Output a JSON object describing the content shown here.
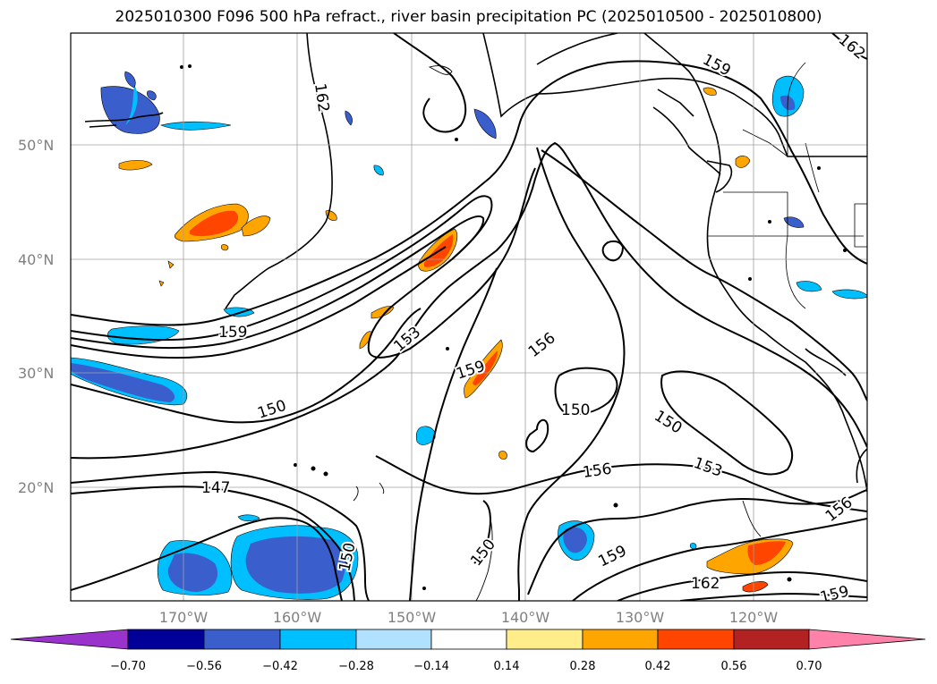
{
  "title": "2025010300 F096 500 hPa refract., river basin precipitation PC (2025010500 - 2025010800)",
  "map": {
    "lat_labels": [
      "50°N",
      "40°N",
      "30°N",
      "20°N"
    ],
    "lon_labels": [
      "170°W",
      "160°W",
      "150°W",
      "140°W",
      "130°W",
      "120°W"
    ],
    "contour_labels": [
      "162",
      "159",
      "159",
      "153",
      "156",
      "159",
      "150",
      "150",
      "150",
      "156",
      "153",
      "147",
      "150",
      "150",
      "159",
      "162",
      "156",
      "159",
      "162"
    ]
  },
  "colorbar": {
    "tick_labels": [
      "−0.70",
      "−0.56",
      "−0.42",
      "−0.28",
      "−0.14",
      "0.14",
      "0.28",
      "0.42",
      "0.56",
      "0.70"
    ],
    "colors": [
      "#9933cc",
      "#000099",
      "#3a5fcd",
      "#00bfff",
      "#b0e2ff",
      "#ffffff",
      "#ffec8b",
      "#ffa500",
      "#ff4500",
      "#b22222",
      "#ff82ab"
    ]
  }
}
